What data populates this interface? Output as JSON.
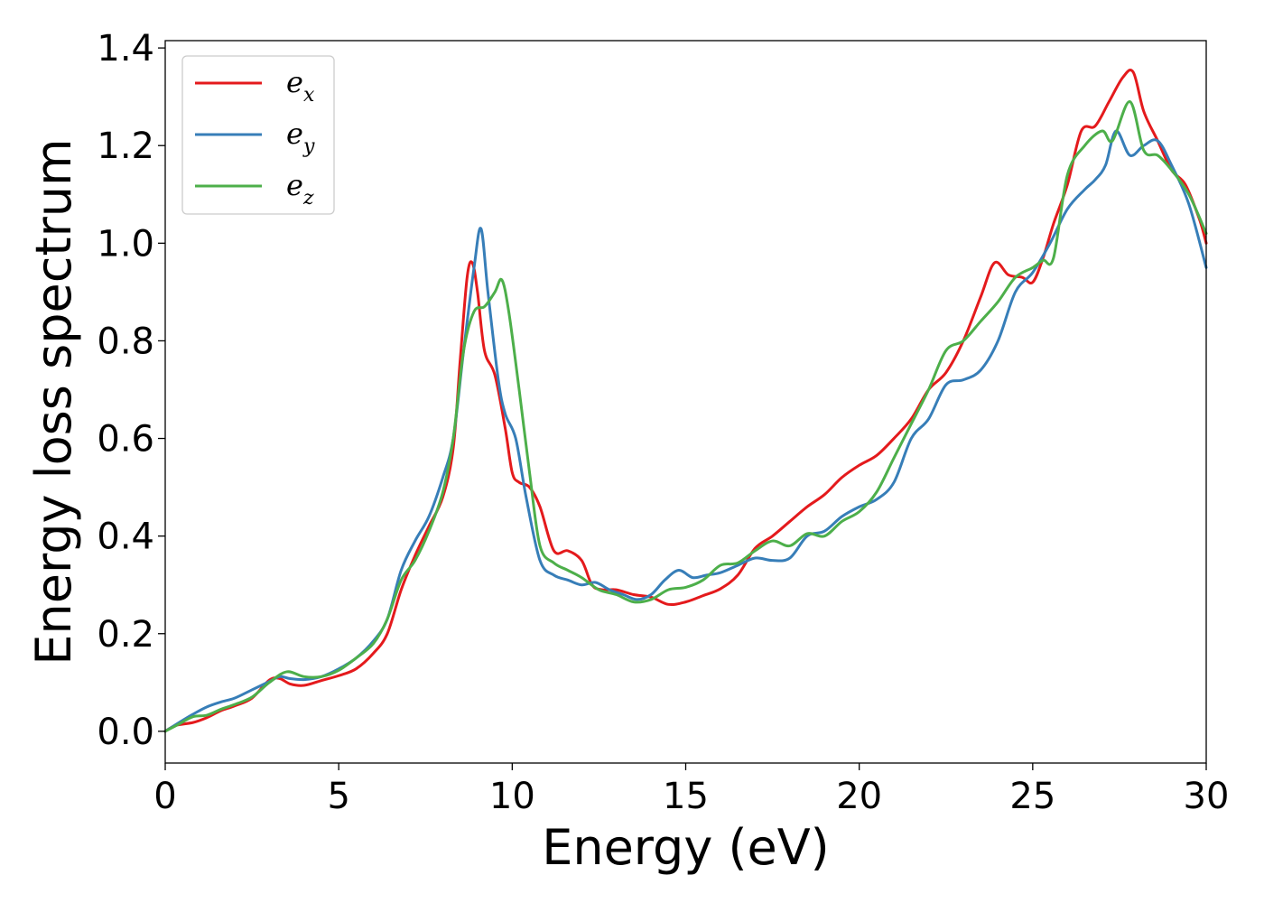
{
  "chart_data": {
    "type": "line",
    "xlabel": "Energy (eV)",
    "ylabel": "Energy loss spectrum",
    "xlim": [
      0,
      30
    ],
    "ylim": [
      -0.065,
      1.415
    ],
    "x_ticks": [
      0,
      5,
      10,
      15,
      20,
      25,
      30
    ],
    "y_ticks": [
      0.0,
      0.2,
      0.4,
      0.6,
      0.8,
      1.0,
      1.2,
      1.4
    ],
    "x_tick_labels": [
      "0",
      "5",
      "10",
      "15",
      "20",
      "25",
      "30"
    ],
    "y_tick_labels": [
      "0.0",
      "0.2",
      "0.4",
      "0.6",
      "0.8",
      "1.0",
      "1.2",
      "1.4"
    ],
    "grid": false,
    "legend_position": "top-left",
    "series": [
      {
        "name": "e_x",
        "label_main": "e",
        "label_sub": "x",
        "color": "#e41a1c",
        "points": [
          [
            0,
            0
          ],
          [
            0.3,
            0.012
          ],
          [
            0.8,
            0.018
          ],
          [
            1.2,
            0.028
          ],
          [
            1.6,
            0.042
          ],
          [
            2.0,
            0.052
          ],
          [
            2.5,
            0.068
          ],
          [
            3.0,
            0.105
          ],
          [
            3.3,
            0.108
          ],
          [
            3.6,
            0.097
          ],
          [
            4.0,
            0.094
          ],
          [
            4.5,
            0.104
          ],
          [
            5.0,
            0.114
          ],
          [
            5.5,
            0.128
          ],
          [
            6.0,
            0.16
          ],
          [
            6.4,
            0.2
          ],
          [
            6.8,
            0.29
          ],
          [
            7.2,
            0.36
          ],
          [
            7.6,
            0.42
          ],
          [
            8.0,
            0.48
          ],
          [
            8.3,
            0.58
          ],
          [
            8.5,
            0.76
          ],
          [
            8.7,
            0.93
          ],
          [
            8.85,
            0.96
          ],
          [
            9.0,
            0.9
          ],
          [
            9.2,
            0.78
          ],
          [
            9.5,
            0.73
          ],
          [
            9.8,
            0.62
          ],
          [
            10.0,
            0.53
          ],
          [
            10.2,
            0.51
          ],
          [
            10.5,
            0.5
          ],
          [
            10.8,
            0.46
          ],
          [
            11.2,
            0.37
          ],
          [
            11.6,
            0.37
          ],
          [
            12.0,
            0.35
          ],
          [
            12.3,
            0.3
          ],
          [
            12.6,
            0.29
          ],
          [
            13.0,
            0.29
          ],
          [
            13.5,
            0.28
          ],
          [
            14.0,
            0.275
          ],
          [
            14.5,
            0.26
          ],
          [
            15.0,
            0.265
          ],
          [
            15.5,
            0.278
          ],
          [
            16.0,
            0.292
          ],
          [
            16.5,
            0.32
          ],
          [
            17.0,
            0.375
          ],
          [
            17.5,
            0.4
          ],
          [
            18.0,
            0.43
          ],
          [
            18.5,
            0.46
          ],
          [
            19.0,
            0.485
          ],
          [
            19.5,
            0.52
          ],
          [
            20.0,
            0.545
          ],
          [
            20.5,
            0.565
          ],
          [
            21.0,
            0.6
          ],
          [
            21.5,
            0.64
          ],
          [
            22.0,
            0.7
          ],
          [
            22.5,
            0.735
          ],
          [
            23.0,
            0.8
          ],
          [
            23.5,
            0.89
          ],
          [
            23.9,
            0.96
          ],
          [
            24.3,
            0.935
          ],
          [
            24.7,
            0.93
          ],
          [
            25.0,
            0.92
          ],
          [
            25.3,
            0.97
          ],
          [
            25.6,
            1.04
          ],
          [
            26.0,
            1.12
          ],
          [
            26.4,
            1.23
          ],
          [
            26.8,
            1.24
          ],
          [
            27.2,
            1.29
          ],
          [
            27.6,
            1.34
          ],
          [
            27.9,
            1.35
          ],
          [
            28.2,
            1.27
          ],
          [
            28.6,
            1.21
          ],
          [
            29.0,
            1.15
          ],
          [
            29.4,
            1.12
          ],
          [
            29.8,
            1.05
          ],
          [
            30.0,
            1.0
          ]
        ]
      },
      {
        "name": "e_y",
        "label_main": "e",
        "label_sub": "y",
        "color": "#377eb8",
        "points": [
          [
            0,
            0
          ],
          [
            0.4,
            0.018
          ],
          [
            0.8,
            0.035
          ],
          [
            1.2,
            0.05
          ],
          [
            1.6,
            0.06
          ],
          [
            2.0,
            0.068
          ],
          [
            2.5,
            0.085
          ],
          [
            3.0,
            0.102
          ],
          [
            3.3,
            0.112
          ],
          [
            3.6,
            0.108
          ],
          [
            4.0,
            0.106
          ],
          [
            4.5,
            0.112
          ],
          [
            5.0,
            0.128
          ],
          [
            5.5,
            0.15
          ],
          [
            6.0,
            0.185
          ],
          [
            6.4,
            0.23
          ],
          [
            6.8,
            0.33
          ],
          [
            7.2,
            0.39
          ],
          [
            7.6,
            0.44
          ],
          [
            8.0,
            0.52
          ],
          [
            8.3,
            0.6
          ],
          [
            8.6,
            0.78
          ],
          [
            8.9,
            0.95
          ],
          [
            9.1,
            1.03
          ],
          [
            9.3,
            0.9
          ],
          [
            9.6,
            0.72
          ],
          [
            9.8,
            0.65
          ],
          [
            10.1,
            0.6
          ],
          [
            10.4,
            0.48
          ],
          [
            10.8,
            0.35
          ],
          [
            11.2,
            0.32
          ],
          [
            11.6,
            0.31
          ],
          [
            12.0,
            0.3
          ],
          [
            12.4,
            0.305
          ],
          [
            12.8,
            0.29
          ],
          [
            13.2,
            0.28
          ],
          [
            13.6,
            0.27
          ],
          [
            14.0,
            0.28
          ],
          [
            14.4,
            0.31
          ],
          [
            14.8,
            0.33
          ],
          [
            15.2,
            0.315
          ],
          [
            15.6,
            0.32
          ],
          [
            16.0,
            0.325
          ],
          [
            16.5,
            0.34
          ],
          [
            17.0,
            0.355
          ],
          [
            17.5,
            0.35
          ],
          [
            18.0,
            0.355
          ],
          [
            18.5,
            0.4
          ],
          [
            19.0,
            0.41
          ],
          [
            19.5,
            0.44
          ],
          [
            20.0,
            0.46
          ],
          [
            20.5,
            0.475
          ],
          [
            21.0,
            0.51
          ],
          [
            21.5,
            0.6
          ],
          [
            22.0,
            0.64
          ],
          [
            22.5,
            0.71
          ],
          [
            23.0,
            0.72
          ],
          [
            23.5,
            0.74
          ],
          [
            24.0,
            0.8
          ],
          [
            24.5,
            0.9
          ],
          [
            25.0,
            0.94
          ],
          [
            25.5,
            1.0
          ],
          [
            26.0,
            1.07
          ],
          [
            26.5,
            1.11
          ],
          [
            26.8,
            1.13
          ],
          [
            27.1,
            1.16
          ],
          [
            27.4,
            1.23
          ],
          [
            27.8,
            1.18
          ],
          [
            28.2,
            1.2
          ],
          [
            28.6,
            1.21
          ],
          [
            29.0,
            1.16
          ],
          [
            29.5,
            1.08
          ],
          [
            30.0,
            0.95
          ]
        ]
      },
      {
        "name": "e_z",
        "label_main": "e",
        "label_sub": "z",
        "color": "#4daf4a",
        "points": [
          [
            0,
            0
          ],
          [
            0.4,
            0.015
          ],
          [
            0.8,
            0.03
          ],
          [
            1.2,
            0.033
          ],
          [
            1.6,
            0.045
          ],
          [
            2.0,
            0.055
          ],
          [
            2.5,
            0.07
          ],
          [
            3.0,
            0.1
          ],
          [
            3.5,
            0.122
          ],
          [
            4.0,
            0.112
          ],
          [
            4.5,
            0.112
          ],
          [
            5.0,
            0.125
          ],
          [
            5.5,
            0.15
          ],
          [
            6.0,
            0.18
          ],
          [
            6.4,
            0.23
          ],
          [
            6.8,
            0.31
          ],
          [
            7.2,
            0.35
          ],
          [
            7.6,
            0.41
          ],
          [
            8.0,
            0.49
          ],
          [
            8.3,
            0.6
          ],
          [
            8.6,
            0.78
          ],
          [
            8.9,
            0.86
          ],
          [
            9.2,
            0.87
          ],
          [
            9.5,
            0.9
          ],
          [
            9.7,
            0.925
          ],
          [
            9.9,
            0.86
          ],
          [
            10.2,
            0.7
          ],
          [
            10.5,
            0.53
          ],
          [
            10.8,
            0.38
          ],
          [
            11.2,
            0.345
          ],
          [
            11.6,
            0.33
          ],
          [
            12.0,
            0.315
          ],
          [
            12.5,
            0.29
          ],
          [
            13.0,
            0.28
          ],
          [
            13.5,
            0.265
          ],
          [
            14.0,
            0.27
          ],
          [
            14.5,
            0.29
          ],
          [
            15.0,
            0.295
          ],
          [
            15.5,
            0.31
          ],
          [
            16.0,
            0.34
          ],
          [
            16.5,
            0.345
          ],
          [
            17.0,
            0.37
          ],
          [
            17.5,
            0.39
          ],
          [
            18.0,
            0.38
          ],
          [
            18.5,
            0.405
          ],
          [
            19.0,
            0.4
          ],
          [
            19.5,
            0.43
          ],
          [
            20.0,
            0.45
          ],
          [
            20.5,
            0.49
          ],
          [
            21.0,
            0.56
          ],
          [
            21.5,
            0.63
          ],
          [
            22.0,
            0.7
          ],
          [
            22.5,
            0.78
          ],
          [
            23.0,
            0.8
          ],
          [
            23.5,
            0.84
          ],
          [
            24.0,
            0.88
          ],
          [
            24.5,
            0.93
          ],
          [
            25.0,
            0.95
          ],
          [
            25.3,
            0.965
          ],
          [
            25.6,
            0.97
          ],
          [
            26.0,
            1.14
          ],
          [
            26.5,
            1.2
          ],
          [
            27.0,
            1.23
          ],
          [
            27.3,
            1.21
          ],
          [
            27.8,
            1.29
          ],
          [
            28.2,
            1.19
          ],
          [
            28.6,
            1.18
          ],
          [
            29.0,
            1.15
          ],
          [
            29.5,
            1.1
          ],
          [
            30.0,
            1.02
          ]
        ]
      }
    ]
  }
}
